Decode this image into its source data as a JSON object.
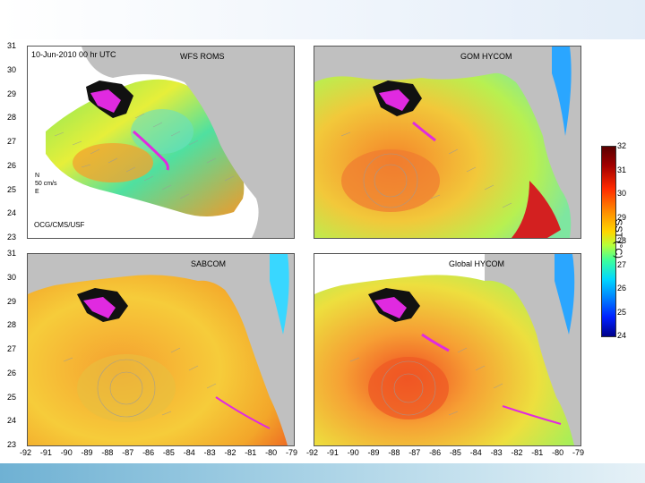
{
  "chart_data": {
    "type": "heatmap",
    "title": "",
    "timestamp": "10-Jun-2010 00 hr UTC",
    "credit": "OCG/CMS/USF",
    "velocity_scale": {
      "north": "N",
      "value": "50 cm/s",
      "east": "E"
    },
    "panels": [
      {
        "name": "WFS ROMS"
      },
      {
        "name": "GOM HYCOM"
      },
      {
        "name": "SABCOM"
      },
      {
        "name": "Global HYCOM"
      }
    ],
    "x_ticks": [
      "-92",
      "-91",
      "-90",
      "-89",
      "-88",
      "-87",
      "-86",
      "-85",
      "-84",
      "-83",
      "-82",
      "-81",
      "-80",
      "-79"
    ],
    "y_ticks": [
      "31",
      "30",
      "29",
      "28",
      "27",
      "26",
      "25",
      "24",
      "23"
    ],
    "xlim": [
      -92,
      -79
    ],
    "ylim": [
      23,
      31
    ],
    "colorbar": {
      "label": "SST (°C)",
      "ticks": [
        "32",
        "31",
        "30",
        "29",
        "28",
        "27",
        "26",
        "25",
        "24"
      ],
      "range": [
        24,
        32
      ]
    }
  },
  "colors": {
    "land": "#c0c0c0",
    "oil_black": "#111111",
    "oil_magenta": "#e02ae0",
    "vectors": "#9a9a9a",
    "warm": "#ff7a1a",
    "mid": "#e9ef38",
    "cool": "#4fe08c",
    "cold": "#2aa6ff"
  }
}
